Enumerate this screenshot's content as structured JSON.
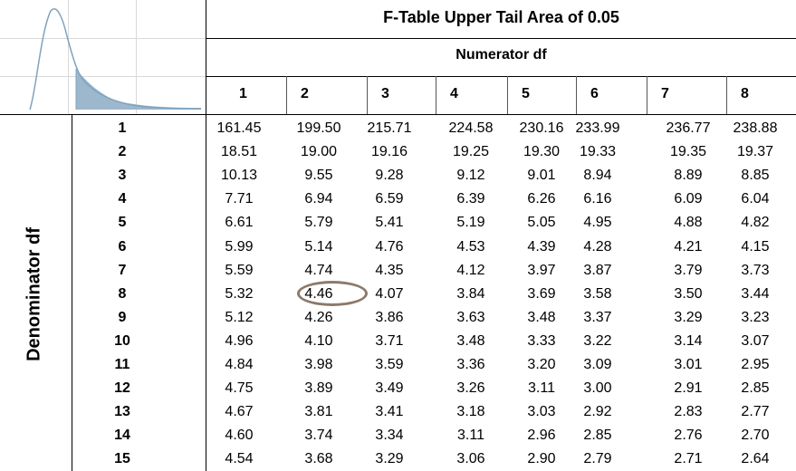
{
  "title": "F-Table Upper Tail Area of 0.05",
  "subtitle": "Numerator df",
  "side_label": "Denominator df",
  "numerator_df": [
    "1",
    "2",
    "3",
    "4",
    "5",
    "6",
    "7",
    "8"
  ],
  "denominator_df": [
    "1",
    "2",
    "3",
    "4",
    "5",
    "6",
    "7",
    "8",
    "9",
    "10",
    "11",
    "12",
    "13",
    "14",
    "15"
  ],
  "rows": [
    [
      "161.45",
      "199.50",
      "215.71",
      "224.58",
      "230.16",
      "233.99",
      "236.77",
      "238.88"
    ],
    [
      "18.51",
      "19.00",
      "19.16",
      "19.25",
      "19.30",
      "19.33",
      "19.35",
      "19.37"
    ],
    [
      "10.13",
      "9.55",
      "9.28",
      "9.12",
      "9.01",
      "8.94",
      "8.89",
      "8.85"
    ],
    [
      "7.71",
      "6.94",
      "6.59",
      "6.39",
      "6.26",
      "6.16",
      "6.09",
      "6.04"
    ],
    [
      "6.61",
      "5.79",
      "5.41",
      "5.19",
      "5.05",
      "4.95",
      "4.88",
      "4.82"
    ],
    [
      "5.99",
      "5.14",
      "4.76",
      "4.53",
      "4.39",
      "4.28",
      "4.21",
      "4.15"
    ],
    [
      "5.59",
      "4.74",
      "4.35",
      "4.12",
      "3.97",
      "3.87",
      "3.79",
      "3.73"
    ],
    [
      "5.32",
      "4.46",
      "4.07",
      "3.84",
      "3.69",
      "3.58",
      "3.50",
      "3.44"
    ],
    [
      "5.12",
      "4.26",
      "3.86",
      "3.63",
      "3.48",
      "3.37",
      "3.29",
      "3.23"
    ],
    [
      "4.96",
      "4.10",
      "3.71",
      "3.48",
      "3.33",
      "3.22",
      "3.14",
      "3.07"
    ],
    [
      "4.84",
      "3.98",
      "3.59",
      "3.36",
      "3.20",
      "3.09",
      "3.01",
      "2.95"
    ],
    [
      "4.75",
      "3.89",
      "3.49",
      "3.26",
      "3.11",
      "3.00",
      "2.91",
      "2.85"
    ],
    [
      "4.67",
      "3.81",
      "3.41",
      "3.18",
      "3.03",
      "2.92",
      "2.83",
      "2.77"
    ],
    [
      "4.60",
      "3.74",
      "3.34",
      "3.11",
      "2.96",
      "2.85",
      "2.76",
      "2.70"
    ],
    [
      "4.54",
      "3.68",
      "3.29",
      "3.06",
      "2.90",
      "2.79",
      "2.71",
      "2.64"
    ]
  ],
  "highlighted_cell": {
    "denominator_df": "8",
    "numerator_df": "2",
    "value": "4.46"
  },
  "colors": {
    "curve": "#7fa3bf",
    "tail_fill": "#9db7cc",
    "circle": "#8c7a6b"
  },
  "illustration": "f-distribution-curve-with-shaded-upper-tail"
}
